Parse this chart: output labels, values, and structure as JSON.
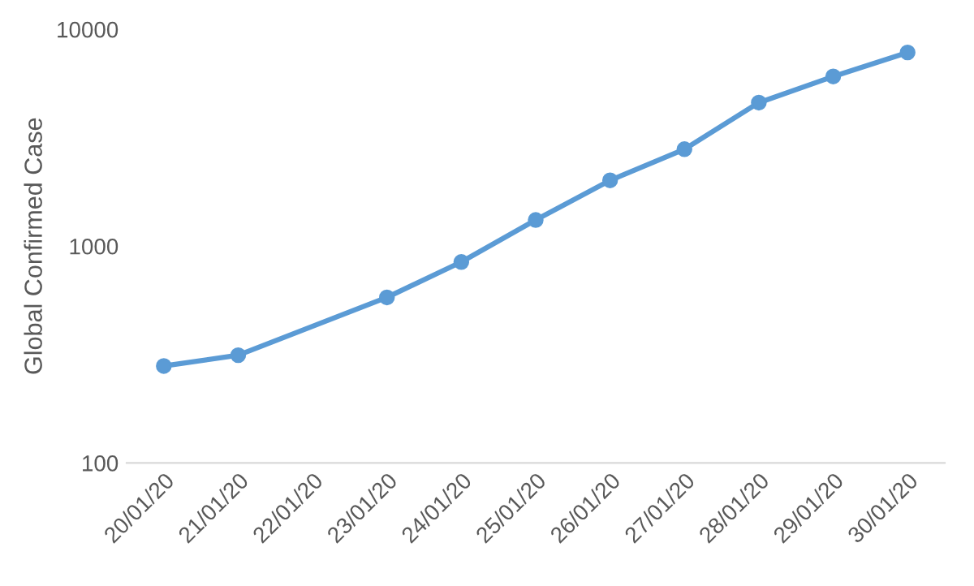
{
  "chart_data": {
    "type": "line",
    "ylabel": "Global Confirmed Case",
    "categories": [
      "20/01/20",
      "21/01/20",
      "22/01/20",
      "23/01/20",
      "24/01/20",
      "25/01/20",
      "26/01/20",
      "27/01/20",
      "28/01/20",
      "29/01/20",
      "30/01/20"
    ],
    "series": [
      {
        "color": "#5b9bd5",
        "values": [
          280,
          314,
          null,
          580,
          845,
          1320,
          2010,
          2800,
          4590,
          6060,
          7820
        ]
      }
    ],
    "log": true,
    "ylim": [
      100,
      10000
    ],
    "yticks": [
      100,
      1000,
      10000
    ],
    "grid": false,
    "legend": false,
    "marker": "circle",
    "line_style": "solid"
  }
}
